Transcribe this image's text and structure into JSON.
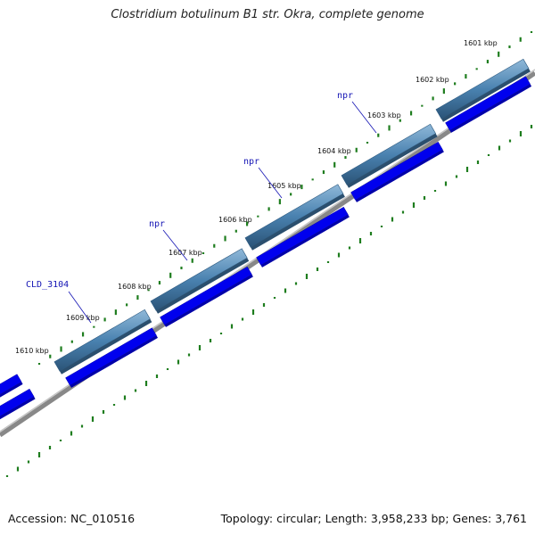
{
  "title": "Clostridium botulinum B1 str. Okra, complete genome",
  "footer": {
    "accession": "Accession: NC_010516",
    "stats": "Topology: circular; Length: 3,958,233 bp; Genes: 3,761"
  },
  "ticks": [
    "1601 kbp",
    "1602 kbp",
    "1603 kbp",
    "1604 kbp",
    "1605 kbp",
    "1606 kbp",
    "1607 kbp",
    "1608 kbp",
    "1609 kbp",
    "1610 kbp"
  ],
  "gene_labels": [
    "npr",
    "npr",
    "npr",
    "CLD_3104"
  ],
  "colors": {
    "forward_gene": "#4a82b0",
    "reverse_gene": "#0000ee",
    "backbone": "#707070",
    "gc_plot": "#1e7d1e",
    "label": "#1414b4"
  }
}
